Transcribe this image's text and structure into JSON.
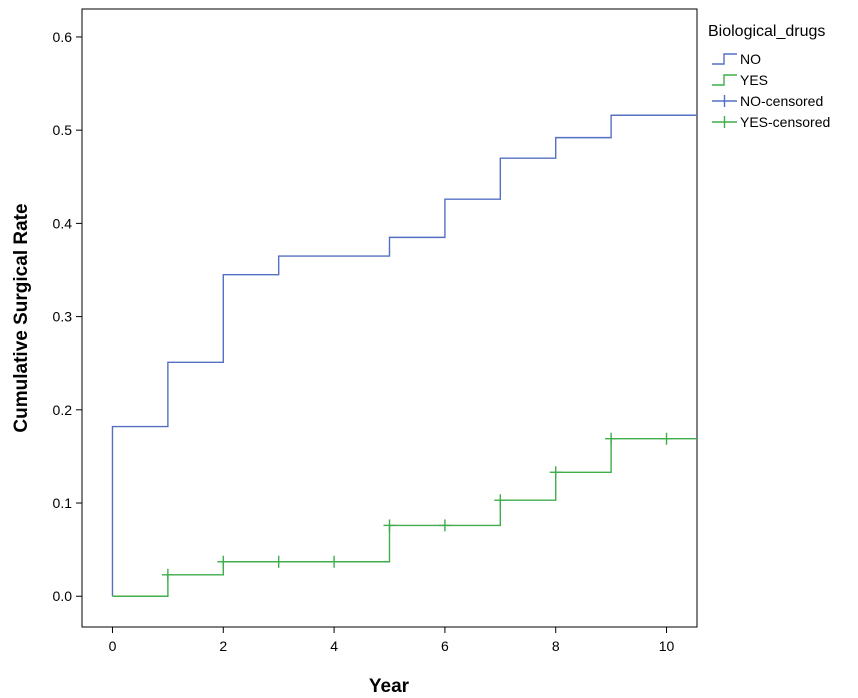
{
  "chart_data": {
    "type": "line",
    "title": "",
    "xlabel": "Year",
    "ylabel": "Cumulative Surgical Rate",
    "xlim": [
      -0.55,
      10.55
    ],
    "ylim": [
      -0.033,
      0.63
    ],
    "xticks": [
      0,
      2,
      4,
      6,
      8,
      10
    ],
    "yticks": [
      0.0,
      0.1,
      0.2,
      0.3,
      0.4,
      0.5,
      0.6
    ],
    "xtick_labels": [
      "0",
      "2",
      "4",
      "6",
      "8",
      "10"
    ],
    "ytick_labels": [
      "0.0",
      "0.1",
      "0.2",
      "0.3",
      "0.4",
      "0.5",
      "0.6"
    ],
    "step": true,
    "grid": false,
    "legend_title": "Biological_drugs",
    "legend_placement": "right",
    "series": [
      {
        "name": "NO",
        "color": "#5470c4",
        "x": [
          0,
          1,
          2,
          3,
          5,
          6,
          7,
          8,
          9,
          10.55
        ],
        "y": [
          0.182,
          0.251,
          0.345,
          0.365,
          0.385,
          0.426,
          0.47,
          0.492,
          0.516,
          0.516
        ],
        "censored_x": [],
        "censored_y": []
      },
      {
        "name": "YES",
        "color": "#3fae4a",
        "x": [
          0,
          1,
          2,
          5,
          7,
          8,
          9,
          10.55
        ],
        "y": [
          0.0,
          0.023,
          0.037,
          0.076,
          0.103,
          0.133,
          0.169,
          0.169
        ],
        "censored_x": [
          1,
          2,
          3,
          4,
          5,
          6,
          7,
          8,
          9,
          10
        ],
        "censored_y": [
          0.023,
          0.037,
          0.037,
          0.037,
          0.076,
          0.076,
          0.103,
          0.133,
          0.169,
          0.169
        ]
      }
    ],
    "legend_entries": [
      {
        "label": "NO",
        "kind": "line",
        "color": "#5470c4"
      },
      {
        "label": "YES",
        "kind": "line",
        "color": "#3fae4a"
      },
      {
        "label": "NO-censored",
        "kind": "cross",
        "color": "#5470c4"
      },
      {
        "label": "YES-censored",
        "kind": "cross",
        "color": "#3fae4a"
      }
    ]
  }
}
